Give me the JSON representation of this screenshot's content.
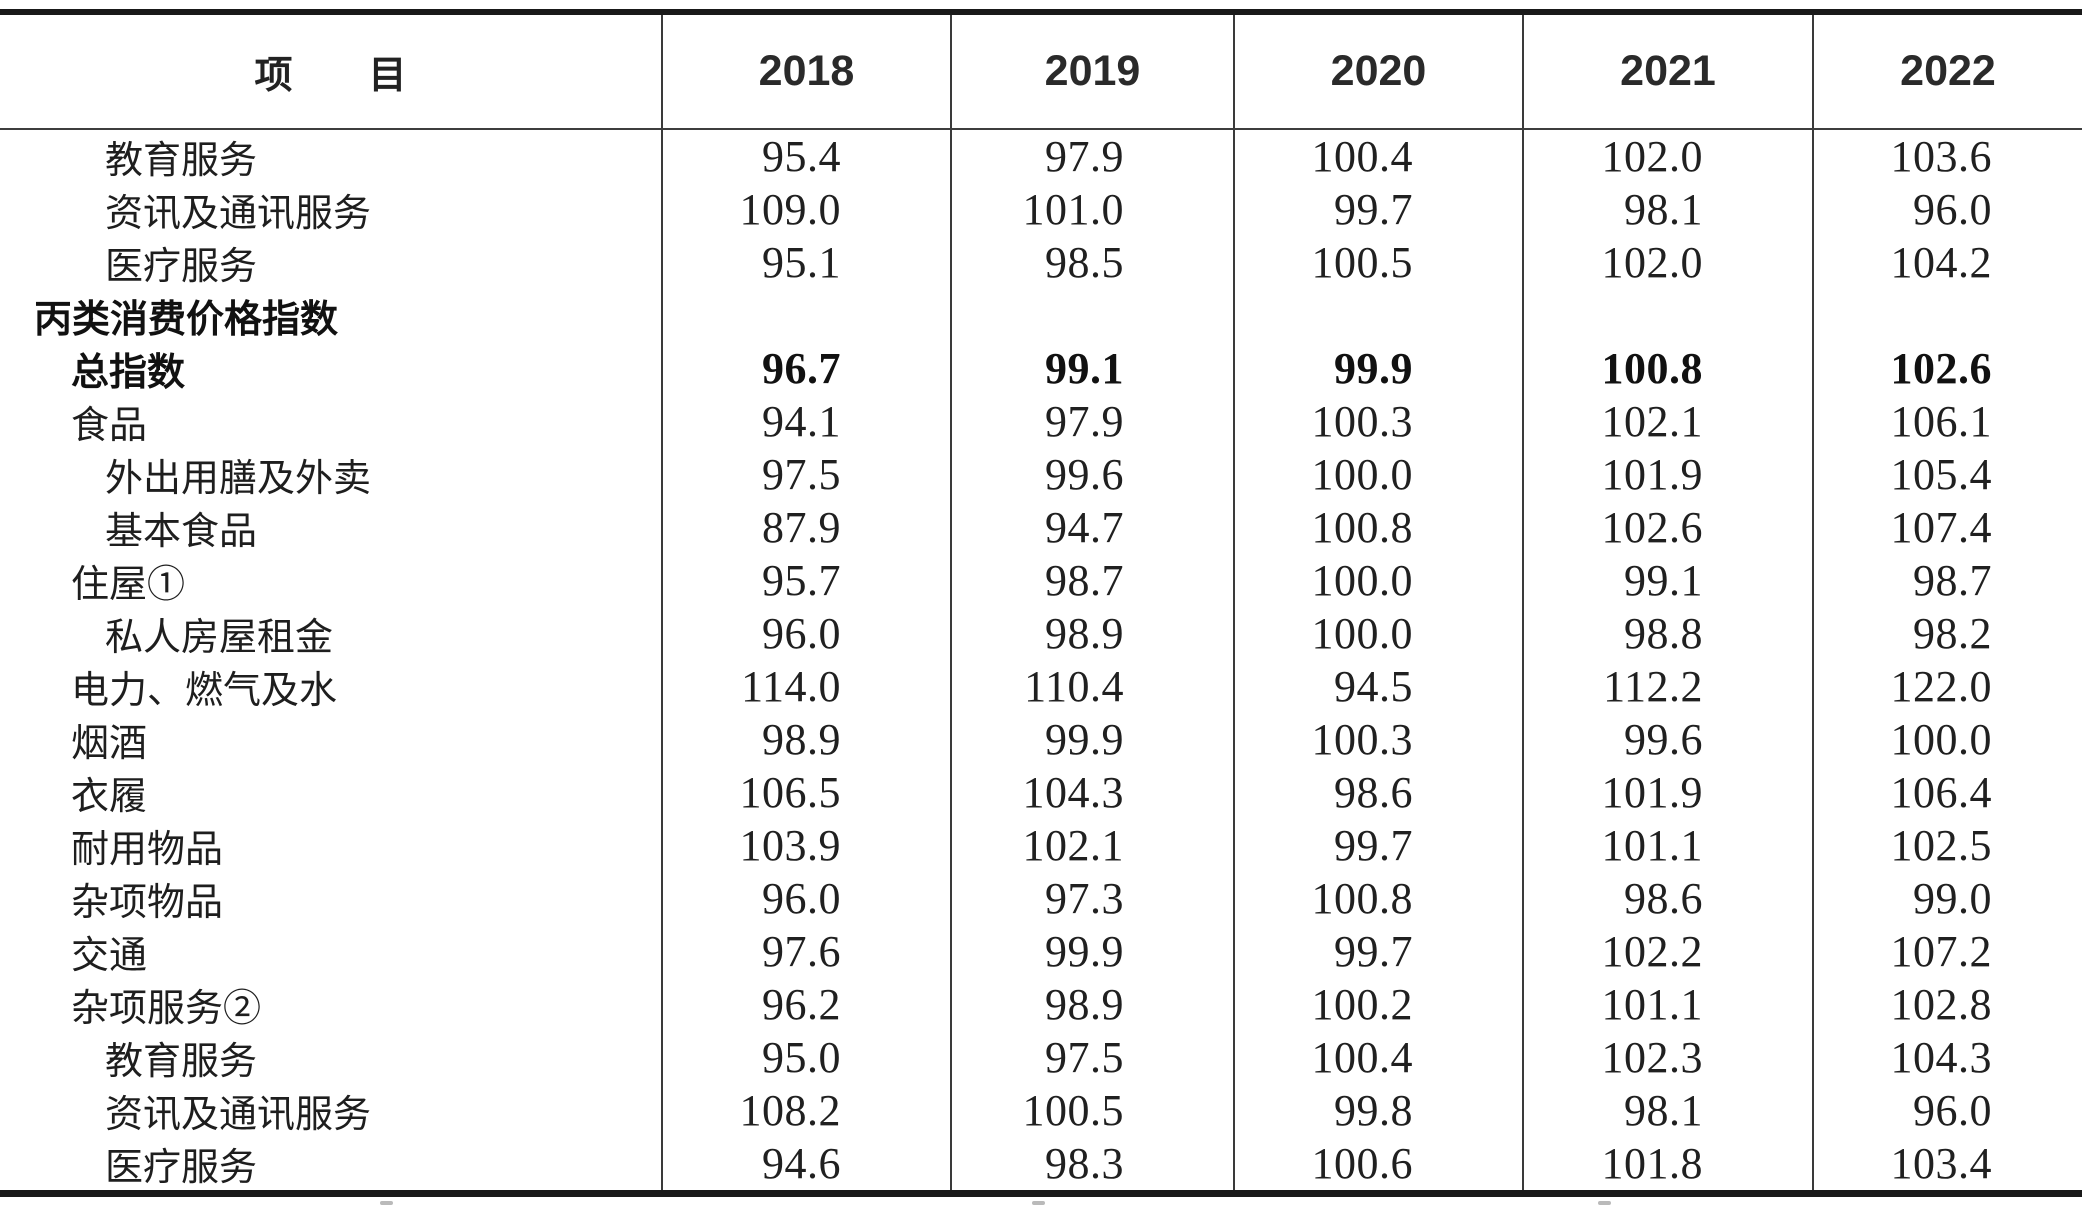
{
  "table": {
    "item_header": "项　　目",
    "year_headers": [
      "2018",
      "2019",
      "2020",
      "2021",
      "2022"
    ],
    "rows": [
      {
        "label": "教育服务",
        "indent": 2,
        "bold": false,
        "values": [
          "95.4",
          "97.9",
          "100.4",
          "102.0",
          "103.6"
        ]
      },
      {
        "label": "资讯及通讯服务",
        "indent": 2,
        "bold": false,
        "values": [
          "109.0",
          "101.0",
          "99.7",
          "98.1",
          "96.0"
        ]
      },
      {
        "label": "医疗服务",
        "indent": 2,
        "bold": false,
        "values": [
          "95.1",
          "98.5",
          "100.5",
          "102.0",
          "104.2"
        ]
      },
      {
        "label": "丙类消费价格指数",
        "indent": 0,
        "bold": true,
        "values": [
          "",
          "",
          "",
          "",
          ""
        ]
      },
      {
        "label": "总指数",
        "indent": 1,
        "bold": true,
        "values": [
          "96.7",
          "99.1",
          "99.9",
          "100.8",
          "102.6"
        ]
      },
      {
        "label": "食品",
        "indent": 1,
        "bold": false,
        "values": [
          "94.1",
          "97.9",
          "100.3",
          "102.1",
          "106.1"
        ]
      },
      {
        "label": "外出用膳及外卖",
        "indent": 2,
        "bold": false,
        "values": [
          "97.5",
          "99.6",
          "100.0",
          "101.9",
          "105.4"
        ]
      },
      {
        "label": "基本食品",
        "indent": 2,
        "bold": false,
        "values": [
          "87.9",
          "94.7",
          "100.8",
          "102.6",
          "107.4"
        ]
      },
      {
        "label": "住屋①",
        "indent": 1,
        "bold": false,
        "values": [
          "95.7",
          "98.7",
          "100.0",
          "99.1",
          "98.7"
        ]
      },
      {
        "label": "私人房屋租金",
        "indent": 2,
        "bold": false,
        "values": [
          "96.0",
          "98.9",
          "100.0",
          "98.8",
          "98.2"
        ]
      },
      {
        "label": "电力、燃气及水",
        "indent": 1,
        "bold": false,
        "values": [
          "114.0",
          "110.4",
          "94.5",
          "112.2",
          "122.0"
        ]
      },
      {
        "label": "烟酒",
        "indent": 1,
        "bold": false,
        "values": [
          "98.9",
          "99.9",
          "100.3",
          "99.6",
          "100.0"
        ]
      },
      {
        "label": "衣履",
        "indent": 1,
        "bold": false,
        "values": [
          "106.5",
          "104.3",
          "98.6",
          "101.9",
          "106.4"
        ]
      },
      {
        "label": "耐用物品",
        "indent": 1,
        "bold": false,
        "values": [
          "103.9",
          "102.1",
          "99.7",
          "101.1",
          "102.5"
        ]
      },
      {
        "label": "杂项物品",
        "indent": 1,
        "bold": false,
        "values": [
          "96.0",
          "97.3",
          "100.8",
          "98.6",
          "99.0"
        ]
      },
      {
        "label": "交通",
        "indent": 1,
        "bold": false,
        "values": [
          "97.6",
          "99.9",
          "99.7",
          "102.2",
          "107.2"
        ]
      },
      {
        "label": "杂项服务②",
        "indent": 1,
        "bold": false,
        "values": [
          "96.2",
          "98.9",
          "100.2",
          "101.1",
          "102.8"
        ]
      },
      {
        "label": "教育服务",
        "indent": 2,
        "bold": false,
        "values": [
          "95.0",
          "97.5",
          "100.4",
          "102.3",
          "104.3"
        ]
      },
      {
        "label": "资讯及通讯服务",
        "indent": 2,
        "bold": false,
        "values": [
          "108.2",
          "100.5",
          "99.8",
          "98.1",
          "96.0"
        ]
      },
      {
        "label": "医疗服务",
        "indent": 2,
        "bold": false,
        "values": [
          "94.6",
          "98.3",
          "100.6",
          "101.8",
          "103.4"
        ]
      }
    ]
  }
}
